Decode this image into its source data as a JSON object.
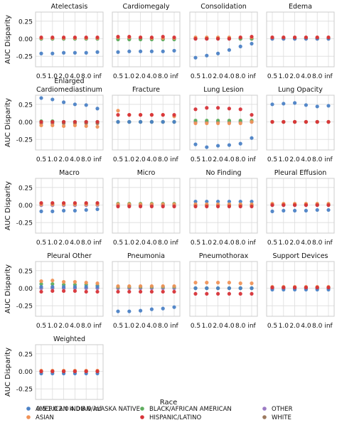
{
  "legend": {
    "title": "Race",
    "entries": [
      {
        "name": "AMERICAN INDIAN/ALASKA NATIVE",
        "color": "#4c82c6"
      },
      {
        "name": "ASIAN",
        "color": "#f09257"
      },
      {
        "name": "BLACK/AFRICAN AMERICAN",
        "color": "#5fad5f"
      },
      {
        "name": "HISPANIC/LATINO",
        "color": "#d73338"
      },
      {
        "name": "OTHER",
        "color": "#9c7bc4"
      },
      {
        "name": "WHITE",
        "color": "#9c7a5e"
      }
    ]
  },
  "chart_data": {
    "type": "scatter",
    "ylabel": "AUC Disparity",
    "x_tick_labels": [
      "0.5",
      "1.0",
      "2.0",
      "4.0",
      "8.0",
      "inf"
    ],
    "y_tick_labels": [
      "0.25",
      "0.00",
      "-0.25"
    ],
    "y_ticks": [
      0.25,
      0.0,
      -0.25
    ],
    "ylim": [
      -0.4,
      0.38
    ],
    "grid": true,
    "legend_position": "bottom",
    "series_names": [
      "AMERICAN INDIAN/ALASKA NATIVE",
      "ASIAN",
      "BLACK/AFRICAN AMERICAN",
      "HISPANIC/LATINO",
      "OTHER",
      "WHITE"
    ],
    "panels": [
      {
        "title": "Atelectasis",
        "series": [
          [
            -0.21,
            -0.21,
            -0.2,
            -0.2,
            -0.2,
            -0.19
          ],
          [
            0.01,
            0.01,
            0.01,
            0.01,
            0.01,
            0.01
          ],
          [
            0.0,
            0.0,
            0.0,
            0.0,
            0.0,
            0.0
          ],
          [
            0.02,
            0.02,
            0.02,
            0.02,
            0.02,
            0.02
          ],
          [
            0.0,
            0.0,
            0.0,
            0.0,
            0.0,
            0.0
          ],
          [
            0.0,
            0.0,
            0.0,
            0.0,
            0.0,
            0.0
          ]
        ]
      },
      {
        "title": "Cardiomegaly",
        "series": [
          [
            -0.19,
            -0.18,
            -0.18,
            -0.18,
            -0.18,
            -0.17
          ],
          [
            0.02,
            0.02,
            0.02,
            0.01,
            0.01,
            0.01
          ],
          [
            -0.01,
            -0.01,
            -0.01,
            -0.01,
            -0.01,
            -0.01
          ],
          [
            0.03,
            0.03,
            0.02,
            0.02,
            0.03,
            0.02
          ],
          [
            0.0,
            0.0,
            0.0,
            0.0,
            0.0,
            0.0
          ],
          [
            0.0,
            0.0,
            0.0,
            0.0,
            0.0,
            0.0
          ]
        ]
      },
      {
        "title": "Consolidation",
        "series": [
          [
            -0.27,
            -0.24,
            -0.21,
            -0.16,
            -0.11,
            -0.07
          ],
          [
            0.02,
            0.02,
            0.02,
            0.02,
            0.02,
            0.02
          ],
          [
            0.01,
            0.01,
            0.01,
            0.01,
            0.0,
            0.0
          ],
          [
            0.0,
            0.0,
            0.0,
            0.0,
            0.02,
            0.03
          ],
          [
            0.0,
            0.0,
            0.0,
            0.0,
            0.0,
            0.0
          ],
          [
            0.0,
            0.0,
            0.0,
            0.0,
            0.0,
            0.0
          ]
        ]
      },
      {
        "title": "Edema",
        "series": [
          [
            0.0,
            0.0,
            0.0,
            0.0,
            0.0,
            0.0
          ],
          [
            0.02,
            0.02,
            0.02,
            0.02,
            0.02,
            0.02
          ],
          [
            0.01,
            0.01,
            0.01,
            0.01,
            0.01,
            0.01
          ],
          [
            0.02,
            0.02,
            0.02,
            0.02,
            0.02,
            0.02
          ],
          [
            0.0,
            0.0,
            0.0,
            0.0,
            0.0,
            0.0
          ],
          [
            0.0,
            0.0,
            0.0,
            0.0,
            0.0,
            0.0
          ]
        ]
      },
      {
        "title": "Enlarged\nCardiomediastinum",
        "series": [
          [
            0.34,
            0.32,
            0.28,
            0.25,
            0.24,
            0.19
          ],
          [
            -0.05,
            -0.05,
            -0.06,
            -0.05,
            -0.06,
            -0.07
          ],
          [
            0.01,
            0.01,
            0.0,
            0.0,
            0.0,
            0.0
          ],
          [
            0.0,
            0.0,
            0.0,
            0.0,
            0.0,
            0.0
          ],
          [
            0.0,
            0.0,
            0.0,
            0.0,
            0.0,
            0.0
          ],
          [
            -0.02,
            -0.02,
            -0.02,
            -0.02,
            -0.02,
            -0.02
          ]
        ]
      },
      {
        "title": "Fracture",
        "series": [
          [
            0.0,
            0.0,
            0.0,
            0.0,
            0.0,
            0.0
          ],
          [
            0.16,
            0.1,
            0.1,
            0.1,
            0.1,
            0.08
          ],
          [
            0.0,
            0.0,
            0.0,
            0.0,
            0.0,
            0.0
          ],
          [
            0.1,
            0.1,
            0.1,
            0.1,
            0.1,
            0.1
          ],
          [
            0.0,
            0.0,
            0.0,
            0.0,
            0.0,
            0.0
          ],
          [
            0.0,
            0.0,
            0.0,
            0.0,
            0.0,
            0.0
          ]
        ]
      },
      {
        "title": "Lung Lesion",
        "series": [
          [
            -0.32,
            -0.36,
            -0.34,
            -0.33,
            -0.31,
            -0.23
          ],
          [
            -0.02,
            -0.02,
            -0.02,
            -0.02,
            -0.02,
            0.0
          ],
          [
            0.02,
            0.02,
            0.02,
            0.02,
            0.02,
            0.02
          ],
          [
            0.18,
            0.2,
            0.2,
            0.19,
            0.18,
            0.1
          ],
          [
            0.0,
            0.0,
            0.0,
            0.0,
            0.0,
            0.0
          ],
          [
            0.0,
            0.0,
            0.0,
            0.0,
            0.0,
            0.0
          ]
        ]
      },
      {
        "title": "Lung Opacity",
        "series": [
          [
            0.25,
            0.26,
            0.27,
            0.24,
            0.22,
            0.23
          ],
          [
            0.0,
            0.0,
            0.0,
            0.0,
            0.0,
            0.0
          ],
          [
            0.0,
            0.0,
            0.0,
            0.0,
            0.0,
            0.0
          ],
          [
            0.0,
            0.0,
            0.0,
            0.0,
            0.0,
            0.0
          ],
          [
            0.0,
            0.0,
            0.0,
            0.0,
            0.0,
            0.0
          ],
          [
            0.0,
            0.0,
            0.0,
            0.0,
            0.0,
            0.0
          ]
        ]
      },
      {
        "title": "Macro",
        "series": [
          [
            -0.09,
            -0.09,
            -0.08,
            -0.08,
            -0.07,
            -0.06
          ],
          [
            0.01,
            0.01,
            0.01,
            0.01,
            0.01,
            0.01
          ],
          [
            0.02,
            0.02,
            0.02,
            0.02,
            0.02,
            0.02
          ],
          [
            0.03,
            0.03,
            0.03,
            0.03,
            0.03,
            0.03
          ],
          [
            0.0,
            0.0,
            0.0,
            0.0,
            0.0,
            0.0
          ],
          [
            0.0,
            0.0,
            0.0,
            0.0,
            0.0,
            0.0
          ]
        ]
      },
      {
        "title": "Micro",
        "series": [
          [
            0.0,
            0.0,
            0.0,
            0.0,
            0.0,
            0.0
          ],
          [
            0.01,
            0.01,
            0.01,
            0.01,
            0.01,
            0.01
          ],
          [
            0.02,
            0.02,
            0.02,
            0.02,
            0.02,
            0.02
          ],
          [
            -0.02,
            -0.02,
            -0.02,
            -0.02,
            -0.02,
            -0.02
          ],
          [
            0.0,
            0.0,
            0.0,
            0.0,
            0.0,
            0.0
          ],
          [
            0.0,
            0.0,
            0.0,
            0.0,
            0.0,
            0.0
          ]
        ]
      },
      {
        "title": "No Finding",
        "series": [
          [
            0.05,
            0.05,
            0.05,
            0.05,
            0.05,
            0.05
          ],
          [
            0.01,
            0.01,
            0.01,
            0.01,
            0.01,
            0.01
          ],
          [
            0.0,
            0.0,
            0.0,
            0.0,
            0.0,
            0.0
          ],
          [
            -0.02,
            -0.02,
            -0.02,
            -0.02,
            -0.02,
            -0.02
          ],
          [
            0.0,
            0.0,
            0.0,
            0.0,
            0.0,
            0.0
          ],
          [
            0.0,
            0.0,
            0.0,
            0.0,
            0.0,
            0.0
          ]
        ]
      },
      {
        "title": "Pleural Effusion",
        "series": [
          [
            -0.09,
            -0.08,
            -0.08,
            -0.08,
            -0.07,
            -0.07
          ],
          [
            0.02,
            0.02,
            0.02,
            0.02,
            0.02,
            0.02
          ],
          [
            0.01,
            0.01,
            0.01,
            0.01,
            0.01,
            0.01
          ],
          [
            0.0,
            0.0,
            0.0,
            0.0,
            0.0,
            0.0
          ],
          [
            0.0,
            0.0,
            0.0,
            0.0,
            0.0,
            0.0
          ],
          [
            0.0,
            0.0,
            0.0,
            0.0,
            0.0,
            0.0
          ]
        ]
      },
      {
        "title": "Pleural Other",
        "series": [
          [
            0.02,
            0.02,
            0.02,
            0.02,
            0.02,
            0.02
          ],
          [
            0.1,
            0.11,
            0.09,
            0.09,
            0.08,
            0.07
          ],
          [
            0.06,
            0.06,
            0.05,
            0.05,
            0.05,
            0.04
          ],
          [
            -0.05,
            -0.04,
            -0.04,
            -0.04,
            -0.05,
            -0.05
          ],
          [
            0.0,
            0.0,
            0.0,
            0.0,
            0.0,
            0.0
          ],
          [
            0.0,
            0.0,
            0.0,
            0.0,
            0.0,
            0.0
          ]
        ]
      },
      {
        "title": "Pneumonia",
        "series": [
          [
            -0.33,
            -0.33,
            -0.32,
            -0.3,
            -0.29,
            -0.27
          ],
          [
            0.03,
            0.03,
            0.03,
            0.03,
            0.03,
            0.03
          ],
          [
            0.02,
            0.02,
            0.02,
            0.02,
            0.02,
            0.02
          ],
          [
            -0.05,
            -0.05,
            -0.05,
            -0.05,
            -0.05,
            -0.05
          ],
          [
            0.0,
            0.0,
            0.0,
            0.0,
            0.0,
            0.0
          ],
          [
            0.0,
            0.0,
            0.0,
            0.0,
            0.0,
            0.0
          ]
        ]
      },
      {
        "title": "Pneumothorax",
        "series": [
          [
            0.0,
            0.0,
            0.0,
            0.0,
            0.0,
            0.0
          ],
          [
            0.08,
            0.08,
            0.08,
            0.08,
            0.07,
            0.07
          ],
          [
            0.0,
            0.0,
            0.0,
            0.0,
            0.0,
            0.0
          ],
          [
            -0.08,
            -0.08,
            -0.08,
            -0.08,
            -0.08,
            -0.08
          ],
          [
            0.0,
            0.0,
            0.0,
            0.0,
            0.0,
            0.0
          ],
          [
            0.0,
            0.0,
            0.0,
            0.0,
            0.0,
            0.0
          ]
        ]
      },
      {
        "title": "Support Devices",
        "series": [
          [
            -0.02,
            -0.02,
            -0.02,
            -0.02,
            -0.02,
            -0.02
          ],
          [
            0.02,
            0.02,
            0.02,
            0.02,
            0.02,
            0.02
          ],
          [
            0.01,
            0.01,
            0.01,
            0.01,
            0.01,
            0.01
          ],
          [
            0.01,
            0.01,
            0.01,
            0.01,
            0.01,
            0.01
          ],
          [
            0.0,
            0.0,
            0.0,
            0.0,
            0.0,
            0.0
          ],
          [
            0.0,
            0.0,
            0.0,
            0.0,
            0.0,
            0.0
          ]
        ]
      },
      {
        "title": "Weighted",
        "series": [
          [
            -0.03,
            -0.03,
            -0.03,
            -0.03,
            -0.03,
            -0.03
          ],
          [
            0.01,
            0.01,
            0.01,
            0.01,
            0.01,
            0.01
          ],
          [
            0.0,
            0.0,
            0.0,
            0.0,
            0.0,
            0.0
          ],
          [
            0.0,
            0.0,
            0.0,
            0.0,
            0.0,
            0.0
          ],
          [
            0.0,
            0.0,
            0.0,
            0.0,
            0.0,
            0.0
          ],
          [
            0.0,
            0.0,
            0.0,
            0.0,
            0.0,
            0.0
          ]
        ]
      }
    ]
  }
}
